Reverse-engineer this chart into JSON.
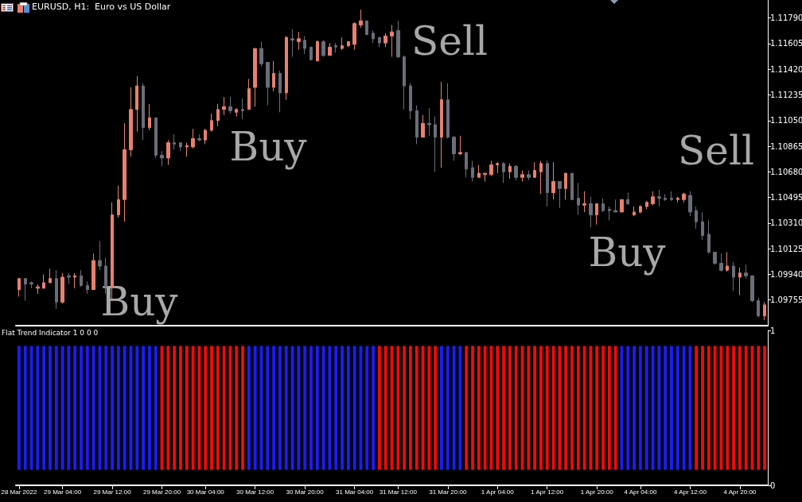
{
  "chart_data": [
    {
      "type": "candlestick",
      "title": "EURUSD, H1:  Euro vs US Dollar",
      "annotations": [
        "Buy",
        "Buy",
        "Sell",
        "Buy",
        "Sell"
      ],
      "ylim": [
        1.0957,
        1.1192
      ],
      "yticks": [
        {
          "value": 1.0994,
          "label": "1.09940"
        },
        {
          "value": 1.09755,
          "label": "1.09755"
        },
        {
          "value": 1.10125,
          "label": "1.10125"
        },
        {
          "value": 1.1031,
          "label": "1.10310"
        },
        {
          "value": 1.10495,
          "label": "1.10495"
        },
        {
          "value": 1.1068,
          "label": "1.10680"
        },
        {
          "value": 1.10865,
          "label": "1.10865"
        },
        {
          "value": 1.1105,
          "label": "1.11050"
        },
        {
          "value": 1.11235,
          "label": "1.11235"
        },
        {
          "value": 1.1142,
          "label": "1.11420"
        },
        {
          "value": 1.11605,
          "label": "1.11605"
        },
        {
          "value": 1.1179,
          "label": "1.11790"
        }
      ],
      "categories": [
        null,
        null,
        null,
        null,
        null,
        null,
        null,
        null,
        null,
        null,
        null,
        null,
        null,
        null,
        null,
        null,
        null,
        null,
        null,
        null,
        null,
        null,
        null,
        null,
        null,
        null,
        null,
        null,
        null,
        null,
        null,
        null,
        null,
        null,
        null,
        null,
        null,
        null,
        null,
        null,
        null,
        null,
        null,
        null,
        null,
        null,
        null,
        null,
        null,
        null,
        null,
        null,
        null,
        null,
        null,
        null,
        null,
        null,
        null,
        null,
        null,
        null,
        null,
        null,
        null,
        null,
        null,
        null,
        null,
        null,
        null,
        null,
        null,
        null,
        null,
        null,
        null,
        null,
        null,
        null,
        null,
        null,
        null,
        null,
        null,
        null,
        null,
        null,
        null,
        null,
        null,
        null,
        null,
        null,
        null,
        null,
        null,
        null,
        null,
        null,
        null,
        null,
        null,
        null,
        null,
        null,
        null,
        null,
        null,
        null,
        null,
        null,
        null,
        null,
        null,
        null,
        null,
        null,
        null,
        null,
        null
      ],
      "ohlc": [
        [
          1.0983,
          1.0991,
          1.0978,
          1.0991
        ],
        [
          1.0991,
          1.0991,
          1.0975,
          1.0987
        ],
        [
          1.0988,
          1.0989,
          1.0984,
          1.0987
        ],
        [
          1.0984,
          1.0987,
          1.098,
          1.0985
        ],
        [
          1.0984,
          1.0994,
          1.0984,
          1.0988
        ],
        [
          1.0988,
          1.0998,
          1.0988,
          1.0991
        ],
        [
          1.0991,
          1.0997,
          1.0969,
          1.0974
        ],
        [
          1.0974,
          1.0995,
          1.0973,
          1.0992
        ],
        [
          1.0993,
          1.0995,
          1.0987,
          1.0992
        ],
        [
          1.0992,
          1.0995,
          1.0984,
          1.0993
        ],
        [
          1.0993,
          1.0997,
          1.0985,
          1.0986
        ],
        [
          1.0986,
          1.0989,
          1.098,
          1.0983
        ],
        [
          1.0983,
          1.1009,
          1.0983,
          1.1004
        ],
        [
          1.1004,
          1.1018,
          1.0997,
          1.1
        ],
        [
          1.1,
          1.1006,
          1.098,
          1.0985
        ],
        [
          1.0985,
          1.1046,
          1.0975,
          1.1037
        ],
        [
          1.1037,
          1.1058,
          1.1035,
          1.1048
        ],
        [
          1.1048,
          1.1103,
          1.1032,
          1.1084
        ],
        [
          1.1084,
          1.1129,
          1.1079,
          1.1113
        ],
        [
          1.1113,
          1.1137,
          1.1097,
          1.113
        ],
        [
          1.113,
          1.1132,
          1.1091,
          1.11
        ],
        [
          1.11,
          1.1117,
          1.1098,
          1.1107
        ],
        [
          1.1107,
          1.1107,
          1.1078,
          1.108
        ],
        [
          1.108,
          1.1083,
          1.1072,
          1.1078
        ],
        [
          1.1078,
          1.1091,
          1.1073,
          1.1089
        ],
        [
          1.1089,
          1.1095,
          1.1084,
          1.1088
        ],
        [
          1.1089,
          1.1089,
          1.1083,
          1.1086
        ],
        [
          1.1086,
          1.1089,
          1.1079,
          1.1087
        ],
        [
          1.1086,
          1.1099,
          1.1085,
          1.1092
        ],
        [
          1.1092,
          1.1095,
          1.109,
          1.1091
        ],
        [
          1.1091,
          1.1099,
          1.1088,
          1.1098
        ],
        [
          1.1098,
          1.111,
          1.1097,
          1.1105
        ],
        [
          1.1105,
          1.1117,
          1.1101,
          1.1113
        ],
        [
          1.1113,
          1.1122,
          1.1109,
          1.1115
        ],
        [
          1.1115,
          1.1122,
          1.111,
          1.1112
        ],
        [
          1.1111,
          1.1114,
          1.1108,
          1.1113
        ],
        [
          1.1113,
          1.1121,
          1.1106,
          1.1112
        ],
        [
          1.1113,
          1.1135,
          1.1113,
          1.1128
        ],
        [
          1.1129,
          1.1157,
          1.1115,
          1.1157
        ],
        [
          1.1157,
          1.1162,
          1.1144,
          1.1146
        ],
        [
          1.1147,
          1.1147,
          1.1116,
          1.1129
        ],
        [
          1.1129,
          1.1148,
          1.1126,
          1.1139
        ],
        [
          1.1139,
          1.1141,
          1.1111,
          1.1125
        ],
        [
          1.1125,
          1.1166,
          1.112,
          1.1165
        ],
        [
          1.1164,
          1.1171,
          1.1151,
          1.1163
        ],
        [
          1.1162,
          1.1169,
          1.1156,
          1.1164
        ],
        [
          1.1163,
          1.1166,
          1.1153,
          1.1157
        ],
        [
          1.1158,
          1.1158,
          1.1148,
          1.1149
        ],
        [
          1.1148,
          1.1163,
          1.1148,
          1.1162
        ],
        [
          1.1162,
          1.1163,
          1.1151,
          1.1152
        ],
        [
          1.1152,
          1.1161,
          1.1152,
          1.1158
        ],
        [
          1.1159,
          1.1161,
          1.1154,
          1.1158
        ],
        [
          1.1157,
          1.1165,
          1.1156,
          1.1159
        ],
        [
          1.1159,
          1.1162,
          1.1158,
          1.1162
        ],
        [
          1.116,
          1.1176,
          1.1156,
          1.1175
        ],
        [
          1.1174,
          1.1185,
          1.1172,
          1.1177
        ],
        [
          1.1177,
          1.1177,
          1.1167,
          1.1167
        ],
        [
          1.1168,
          1.117,
          1.1161,
          1.1164
        ],
        [
          1.1165,
          1.1165,
          1.1158,
          1.1161
        ],
        [
          1.1161,
          1.1168,
          1.1158,
          1.1166
        ],
        [
          1.1166,
          1.1174,
          1.1151,
          1.1169
        ],
        [
          1.117,
          1.1177,
          1.115,
          1.1151
        ],
        [
          1.1151,
          1.1152,
          1.1113,
          1.113
        ],
        [
          1.113,
          1.1132,
          1.1106,
          1.1112
        ],
        [
          1.1112,
          1.1116,
          1.1088,
          1.1093
        ],
        [
          1.1093,
          1.1109,
          1.1093,
          1.1103
        ],
        [
          1.1103,
          1.1114,
          1.1094,
          1.1102
        ],
        [
          1.1102,
          1.1108,
          1.1068,
          1.1093
        ],
        [
          1.1093,
          1.1133,
          1.1071,
          1.112
        ],
        [
          1.112,
          1.1132,
          1.1092,
          1.1093
        ],
        [
          1.1093,
          1.1094,
          1.1076,
          1.1081
        ],
        [
          1.1081,
          1.1094,
          1.108,
          1.1082
        ],
        [
          1.1082,
          1.1082,
          1.1064,
          1.107
        ],
        [
          1.1071,
          1.1076,
          1.1061,
          1.1064
        ],
        [
          1.1064,
          1.1073,
          1.1064,
          1.1067
        ],
        [
          1.1066,
          1.1067,
          1.1061,
          1.1067
        ],
        [
          1.1066,
          1.1076,
          1.1065,
          1.1073
        ],
        [
          1.1073,
          1.1075,
          1.1067,
          1.1074
        ],
        [
          1.1074,
          1.1075,
          1.106,
          1.1068
        ],
        [
          1.1068,
          1.1074,
          1.1063,
          1.1072
        ],
        [
          1.1072,
          1.1073,
          1.1062,
          1.1064
        ],
        [
          1.1064,
          1.1069,
          1.1061,
          1.1066
        ],
        [
          1.1066,
          1.1069,
          1.1062,
          1.1064
        ],
        [
          1.1064,
          1.1075,
          1.1064,
          1.1069
        ],
        [
          1.1068,
          1.1076,
          1.1052,
          1.1074
        ],
        [
          1.1074,
          1.1076,
          1.1043,
          1.1053
        ],
        [
          1.1053,
          1.1075,
          1.1048,
          1.1061
        ],
        [
          1.1061,
          1.1061,
          1.1042,
          1.1056
        ],
        [
          1.1056,
          1.1067,
          1.1048,
          1.1067
        ],
        [
          1.1067,
          1.1067,
          1.1048,
          1.1048
        ],
        [
          1.1049,
          1.106,
          1.1037,
          1.1044
        ],
        [
          1.1044,
          1.1054,
          1.1039,
          1.1045
        ],
        [
          1.1045,
          1.105,
          1.1028,
          1.1037
        ],
        [
          1.1037,
          1.1045,
          1.103,
          1.1045
        ],
        [
          1.1045,
          1.1049,
          1.1039,
          1.104
        ],
        [
          1.1041,
          1.1043,
          1.1033,
          1.104
        ],
        [
          1.104,
          1.1048,
          1.1039,
          1.1039
        ],
        [
          1.1039,
          1.1048,
          1.1039,
          1.1048
        ],
        [
          1.1048,
          1.1053,
          1.1044,
          1.1045
        ],
        [
          1.1037,
          1.1043,
          1.1036,
          1.1039
        ],
        [
          1.1039,
          1.1044,
          1.1038,
          1.1043
        ],
        [
          1.1043,
          1.1047,
          1.1041,
          1.1046
        ],
        [
          1.1045,
          1.1054,
          1.1044,
          1.105
        ],
        [
          1.105,
          1.1055,
          1.1043,
          1.1049
        ],
        [
          1.1049,
          1.1052,
          1.1047,
          1.1048
        ],
        [
          1.1049,
          1.1054,
          1.1047,
          1.1048
        ],
        [
          1.1048,
          1.105,
          1.1046,
          1.1049
        ],
        [
          1.1048,
          1.1053,
          1.1046,
          1.1052
        ],
        [
          1.1051,
          1.1054,
          1.1036,
          1.1039
        ],
        [
          1.104,
          1.1043,
          1.1027,
          1.1032
        ],
        [
          1.1032,
          1.1039,
          1.1019,
          1.1022
        ],
        [
          1.1023,
          1.1033,
          1.1009,
          1.101
        ],
        [
          1.101,
          1.101,
          1.1001,
          1.1002
        ],
        [
          1.1002,
          1.1009,
          1.0996,
          1.0997
        ],
        [
          1.0997,
          1.101,
          1.0996,
          1.1
        ],
        [
          1.1,
          1.1003,
          1.0982,
          1.0992
        ],
        [
          1.0992,
          1.0999,
          1.0979,
          1.0995
        ],
        [
          1.0995,
          1.1001,
          1.0991,
          1.0993
        ],
        [
          1.0993,
          1.0993,
          1.0974,
          1.0975
        ],
        [
          1.0975,
          1.0977,
          1.0963,
          1.0964
        ],
        [
          1.0964,
          1.0974,
          1.0961,
          1.0972
        ]
      ]
    },
    {
      "type": "bar",
      "title": "Flat Trend Indicator 1 0 0 0",
      "ylim": [
        0,
        1
      ],
      "yticks": [
        0,
        1
      ],
      "categories": [
        "28 Mar 2022",
        null,
        null,
        null,
        null,
        null,
        null,
        "29 Mar 04:00",
        null,
        null,
        null,
        null,
        null,
        null,
        null,
        "29 Mar 12:00",
        null,
        null,
        null,
        null,
        null,
        null,
        null,
        "29 Mar 20:00",
        null,
        null,
        null,
        null,
        null,
        null,
        "30 Mar 04:00",
        null,
        null,
        null,
        null,
        null,
        null,
        null,
        "30 Mar 12:00",
        null,
        null,
        null,
        null,
        null,
        null,
        null,
        "30 Mar 20:00",
        null,
        null,
        null,
        null,
        null,
        null,
        null,
        "31 Mar 04:00",
        null,
        null,
        null,
        null,
        null,
        null,
        "31 Mar 12:00",
        null,
        null,
        null,
        null,
        null,
        null,
        null,
        "31 Mar 20:00",
        null,
        null,
        null,
        null,
        null,
        null,
        null,
        "1 Apr 04:00",
        null,
        null,
        null,
        null,
        null,
        null,
        null,
        "1 Apr 12:00",
        null,
        null,
        null,
        null,
        null,
        null,
        null,
        "1 Apr 20:00",
        null,
        null,
        null,
        null,
        null,
        null,
        "4 Apr 04:00",
        null,
        null,
        null,
        null,
        null,
        null,
        null,
        "4 Apr 12:00",
        null,
        null,
        null,
        null,
        null,
        null,
        null,
        "4 Apr 20:00",
        null,
        null,
        null,
        null
      ],
      "base": [
        0.1,
        0.1,
        0.1,
        0.1,
        0.1,
        0.1,
        0.1,
        0.1,
        0.1,
        0.1,
        0.1,
        0.1,
        0.1,
        0.1,
        0.1,
        0.1,
        0.1,
        0.1,
        0.1,
        0.1,
        0.1,
        0.1,
        0.1,
        0.1,
        0.1,
        0.1,
        0.1,
        0.1,
        0.1,
        0.1,
        0.1,
        0.1,
        0.1,
        0.1,
        0.1,
        0.1,
        0.1,
        0.1,
        0.1,
        0.1,
        0.1,
        0.1,
        0.1,
        0.1,
        0.1,
        0.1,
        0.1,
        0.1,
        0.1,
        0.1,
        0.1,
        0.1,
        0.1,
        0.1,
        0.1,
        0.1,
        0.1,
        0.1,
        0.1,
        0.1,
        0.1,
        0.1,
        0.1,
        0.1,
        0.1,
        0.1,
        0.1,
        0.1,
        0.1,
        0.1,
        0.1,
        0.1,
        0.1,
        0.1,
        0.1,
        0.1,
        0.1,
        0.1,
        0.1,
        0.1,
        0.1,
        0.1,
        0.1,
        0.1,
        0.1,
        0.1,
        0.1,
        0.1,
        0.1,
        0.1,
        0.1,
        0.1,
        0.1,
        0.1,
        0.1,
        0.1,
        0.1,
        0.1,
        0.1,
        0.1,
        0.1,
        0.1,
        0.1,
        0.1,
        0.1,
        0.1,
        0.1,
        0.1,
        0.1,
        0.1,
        0.1,
        0.1,
        0.1,
        0.1,
        0.1,
        0.1,
        0.1,
        0.1,
        0.1,
        0.1,
        0.1
      ],
      "values": [
        0.8,
        0.8,
        0.8,
        0.8,
        0.8,
        0.8,
        0.8,
        0.8,
        0.8,
        0.8,
        0.8,
        0.8,
        0.8,
        0.8,
        0.8,
        0.8,
        0.8,
        0.8,
        0.8,
        0.8,
        0.8,
        0.8,
        0.8,
        0.8,
        0.8,
        0.8,
        0.8,
        0.8,
        0.8,
        0.8,
        0.8,
        0.8,
        0.8,
        0.8,
        0.8,
        0.8,
        0.8,
        0.8,
        0.8,
        0.8,
        0.8,
        0.8,
        0.8,
        0.8,
        0.8,
        0.8,
        0.8,
        0.8,
        0.8,
        0.8,
        0.8,
        0.8,
        0.8,
        0.8,
        0.8,
        0.8,
        0.8,
        0.8,
        0.8,
        0.8,
        0.8,
        0.8,
        0.8,
        0.8,
        0.8,
        0.8,
        0.8,
        0.8,
        0.8,
        0.8,
        0.8,
        0.8,
        0.8,
        0.8,
        0.8,
        0.8,
        0.8,
        0.8,
        0.8,
        0.8,
        0.8,
        0.8,
        0.8,
        0.8,
        0.8,
        0.8,
        0.8,
        0.8,
        0.8,
        0.8,
        0.8,
        0.8,
        0.8,
        0.8,
        0.8,
        0.8,
        0.8,
        0.8,
        0.8,
        0.8,
        0.8,
        0.8,
        0.8,
        0.8,
        0.8,
        0.8,
        0.8,
        0.8,
        0.8,
        0.8,
        0.8,
        0.8,
        0.8,
        0.8,
        0.8,
        0.8,
        0.8,
        0.8,
        0.8,
        0.8,
        0.8
      ],
      "colors": [
        "#1c1cf5",
        "#1c1cf5",
        "#1c1cf5",
        "#1c1cf5",
        "#1c1cf5",
        "#1c1cf5",
        "#1c1cf5",
        "#1c1cf5",
        "#1c1cf5",
        "#1c1cf5",
        "#1c1cf5",
        "#1c1cf5",
        "#1c1cf5",
        "#1c1cf5",
        "#1c1cf5",
        "#1c1cf5",
        "#1c1cf5",
        "#1c1cf5",
        "#1c1cf5",
        "#1c1cf5",
        "#1c1cf5",
        "#1c1cf5",
        "#1c1cf5",
        "#f00a0a",
        "#f00a0a",
        "#f00a0a",
        "#f00a0a",
        "#f00a0a",
        "#f00a0a",
        "#f00a0a",
        "#f00a0a",
        "#f00a0a",
        "#f00a0a",
        "#f00a0a",
        "#f00a0a",
        "#f00a0a",
        "#f00a0a",
        "#1c1cf5",
        "#1c1cf5",
        "#1c1cf5",
        "#1c1cf5",
        "#1c1cf5",
        "#1c1cf5",
        "#1c1cf5",
        "#1c1cf5",
        "#1c1cf5",
        "#1c1cf5",
        "#1c1cf5",
        "#1c1cf5",
        "#1c1cf5",
        "#1c1cf5",
        "#1c1cf5",
        "#1c1cf5",
        "#1c1cf5",
        "#1c1cf5",
        "#1c1cf5",
        "#1c1cf5",
        "#1c1cf5",
        "#f00a0a",
        "#f00a0a",
        "#f00a0a",
        "#f00a0a",
        "#f00a0a",
        "#f00a0a",
        "#f00a0a",
        "#f00a0a",
        "#f00a0a",
        "#f00a0a",
        "#1c1cf5",
        "#1c1cf5",
        "#1c1cf5",
        "#1c1cf5",
        "#f00a0a",
        "#f00a0a",
        "#f00a0a",
        "#f00a0a",
        "#f00a0a",
        "#f00a0a",
        "#f00a0a",
        "#f00a0a",
        "#f00a0a",
        "#f00a0a",
        "#f00a0a",
        "#f00a0a",
        "#f00a0a",
        "#f00a0a",
        "#f00a0a",
        "#f00a0a",
        "#f00a0a",
        "#f00a0a",
        "#f00a0a",
        "#f00a0a",
        "#f00a0a",
        "#f00a0a",
        "#f00a0a",
        "#f00a0a",
        "#f00a0a",
        "#1c1cf5",
        "#1c1cf5",
        "#1c1cf5",
        "#1c1cf5",
        "#1c1cf5",
        "#1c1cf5",
        "#1c1cf5",
        "#1c1cf5",
        "#1c1cf5",
        "#1c1cf5",
        "#1c1cf5",
        "#1c1cf5",
        "#f00a0a",
        "#f00a0a",
        "#f00a0a",
        "#f00a0a",
        "#f00a0a",
        "#f00a0a",
        "#f00a0a",
        "#f00a0a",
        "#f00a0a",
        "#f00a0a",
        "#f00a0a",
        "#f00a0a"
      ]
    }
  ]
}
